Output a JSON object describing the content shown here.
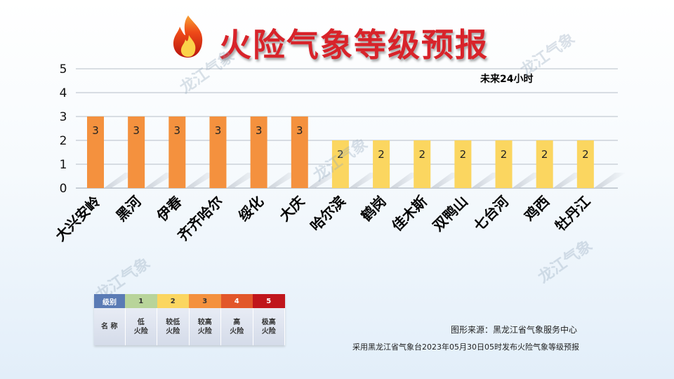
{
  "title": "火险气象等级预报",
  "annotation": "未来24小时",
  "watermark": "龙江气象",
  "chart_data": {
    "type": "bar",
    "categories": [
      "大兴安岭",
      "黑河",
      "伊春",
      "齐齐哈尔",
      "绥化",
      "大庆",
      "哈尔滨",
      "鹤岗",
      "佳木斯",
      "双鸭山",
      "七台河",
      "鸡西",
      "牡丹江"
    ],
    "values": [
      3,
      3,
      3,
      3,
      3,
      3,
      2,
      2,
      2,
      2,
      2,
      2,
      2
    ],
    "ylim": [
      0,
      5
    ],
    "yticks": [
      0,
      1,
      2,
      3,
      4,
      5
    ],
    "grid": true,
    "level_colors": {
      "2": "#fbd660",
      "3": "#f4913e"
    }
  },
  "legend": {
    "header_label": "级别",
    "name_label": "名 称",
    "levels": [
      {
        "level": "1",
        "name_line1": "低",
        "name_line2": "火险",
        "color": "#b8d49a"
      },
      {
        "level": "2",
        "name_line1": "较低",
        "name_line2": "火险",
        "color": "#fbd660"
      },
      {
        "level": "3",
        "name_line1": "较高",
        "name_line2": "火险",
        "color": "#f4913e"
      },
      {
        "level": "4",
        "name_line1": "高",
        "name_line2": "火险",
        "color": "#e2572a"
      },
      {
        "level": "5",
        "name_line1": "极高",
        "name_line2": "火险",
        "color": "#c0161c"
      }
    ]
  },
  "source": "图形来源：黑龙江省气象服务中心",
  "publish_note": "采用黑龙江省气象台2023年05月30日05时发布火险气象等级预报"
}
